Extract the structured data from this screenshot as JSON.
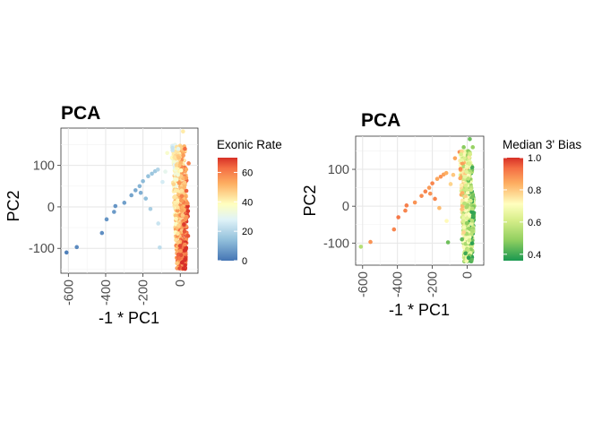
{
  "chart_data": [
    {
      "type": "scatter",
      "title": "PCA",
      "xlabel": "-1 * PC1",
      "ylabel": "PC2",
      "xlim": [
        -640,
        95
      ],
      "ylim": [
        -160,
        190
      ],
      "x_ticks": [
        -600,
        -400,
        -200,
        0
      ],
      "x_tick_labels": [
        "-600",
        "-400",
        "-200",
        "0"
      ],
      "y_ticks": [
        -100,
        0,
        100
      ],
      "y_tick_labels": [
        "-100",
        "0",
        "100"
      ],
      "grid": true,
      "legend": {
        "title": "Exonic Rate",
        "placement": "right",
        "scale": "RdYlBu-reversed",
        "range": [
          0,
          70
        ],
        "ticks": [
          0,
          20,
          40,
          60
        ],
        "tick_labels": [
          "0",
          "20",
          "40",
          "60"
        ]
      },
      "points": [
        {
          "x": -610,
          "y": -110,
          "c": 2
        },
        {
          "x": -555,
          "y": -97,
          "c": 4
        },
        {
          "x": -420,
          "y": -63,
          "c": 5
        },
        {
          "x": -395,
          "y": -30,
          "c": 6
        },
        {
          "x": -355,
          "y": -12,
          "c": 7
        },
        {
          "x": -348,
          "y": 2,
          "c": 6
        },
        {
          "x": -300,
          "y": 10,
          "c": 8
        },
        {
          "x": -262,
          "y": 28,
          "c": 9
        },
        {
          "x": -240,
          "y": 40,
          "c": 10
        },
        {
          "x": -218,
          "y": 50,
          "c": 12
        },
        {
          "x": -200,
          "y": 62,
          "c": 13
        },
        {
          "x": -172,
          "y": 74,
          "c": 15
        },
        {
          "x": -152,
          "y": 80,
          "c": 16
        },
        {
          "x": -135,
          "y": 86,
          "c": 17
        },
        {
          "x": -212,
          "y": 34,
          "c": 11
        },
        {
          "x": -185,
          "y": 20,
          "c": 14
        },
        {
          "x": -160,
          "y": -5,
          "c": 18
        },
        {
          "x": -120,
          "y": 90,
          "c": 20
        },
        {
          "x": -118,
          "y": -40,
          "c": 24
        },
        {
          "x": -110,
          "y": -98,
          "c": 22
        },
        {
          "x": -95,
          "y": 60,
          "c": 26
        },
        {
          "x": -80,
          "y": 85,
          "c": 30
        },
        {
          "x": -70,
          "y": 130,
          "c": 36
        },
        {
          "x": 15,
          "y": 182,
          "c": 42
        },
        {
          "x": 32,
          "y": 70,
          "c": 55
        },
        {
          "x": 45,
          "y": 105,
          "c": 60
        },
        {
          "x": 42,
          "y": -70,
          "c": 66
        },
        {
          "x": 25,
          "y": 140,
          "c": 63
        }
      ],
      "cluster": {
        "x_center": 5,
        "x_spread": 38,
        "y_min": -150,
        "y_max": 150,
        "count": 560,
        "value_range": [
          10,
          70
        ]
      }
    },
    {
      "type": "scatter",
      "title": "PCA",
      "xlabel": "-1 * PC1",
      "ylabel": "PC2",
      "xlim": [
        -640,
        95
      ],
      "ylim": [
        -160,
        190
      ],
      "x_ticks": [
        -600,
        -400,
        -200,
        0
      ],
      "x_tick_labels": [
        "-600",
        "-400",
        "-200",
        "0"
      ],
      "y_ticks": [
        -100,
        0,
        100
      ],
      "y_tick_labels": [
        "-100",
        "0",
        "100"
      ],
      "grid": true,
      "legend": {
        "title": "Median 3' Bias",
        "placement": "right",
        "scale": "RdYlGn-reversed",
        "range": [
          0.36,
          1.0
        ],
        "ticks": [
          0.4,
          0.6,
          0.8,
          1.0
        ],
        "tick_labels": [
          "0.4",
          "0.6",
          "0.8",
          "1.0"
        ]
      },
      "points": [
        {
          "x": -610,
          "y": -110,
          "c": 0.55
        },
        {
          "x": -555,
          "y": -97,
          "c": 0.88
        },
        {
          "x": -420,
          "y": -63,
          "c": 0.9
        },
        {
          "x": -395,
          "y": -30,
          "c": 0.92
        },
        {
          "x": -355,
          "y": -12,
          "c": 0.9
        },
        {
          "x": -348,
          "y": 2,
          "c": 0.91
        },
        {
          "x": -300,
          "y": 10,
          "c": 0.88
        },
        {
          "x": -262,
          "y": 28,
          "c": 0.89
        },
        {
          "x": -240,
          "y": 40,
          "c": 0.9
        },
        {
          "x": -218,
          "y": 50,
          "c": 0.87
        },
        {
          "x": -200,
          "y": 62,
          "c": 0.9
        },
        {
          "x": -172,
          "y": 74,
          "c": 0.85
        },
        {
          "x": -152,
          "y": 80,
          "c": 0.88
        },
        {
          "x": -135,
          "y": 86,
          "c": 0.86
        },
        {
          "x": -212,
          "y": 34,
          "c": 0.88
        },
        {
          "x": -185,
          "y": 20,
          "c": 0.9
        },
        {
          "x": -160,
          "y": -5,
          "c": 0.82
        },
        {
          "x": -120,
          "y": 90,
          "c": 0.84
        },
        {
          "x": -118,
          "y": -40,
          "c": 0.72
        },
        {
          "x": -110,
          "y": -98,
          "c": 0.45
        },
        {
          "x": -95,
          "y": 60,
          "c": 0.78
        },
        {
          "x": -80,
          "y": 85,
          "c": 0.8
        },
        {
          "x": -70,
          "y": 130,
          "c": 0.85
        },
        {
          "x": 15,
          "y": 182,
          "c": 0.45
        },
        {
          "x": 32,
          "y": 160,
          "c": 0.5
        },
        {
          "x": -20,
          "y": 160,
          "c": 0.48
        },
        {
          "x": 8,
          "y": -140,
          "c": 0.38
        },
        {
          "x": -10,
          "y": -128,
          "c": 0.4
        },
        {
          "x": -30,
          "y": -90,
          "c": 0.44
        }
      ],
      "cluster": {
        "x_center": 5,
        "x_spread": 38,
        "y_min": -150,
        "y_max": 150,
        "count": 560,
        "value_range": [
          0.38,
          0.95
        ]
      }
    }
  ]
}
